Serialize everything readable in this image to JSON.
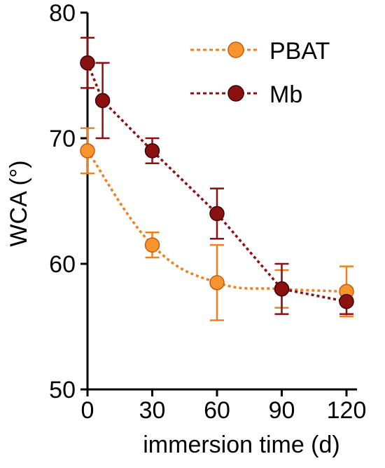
{
  "chart_data": {
    "type": "line",
    "xlabel": "immersion time (d)",
    "ylabel": "WCA (°)",
    "xlim": [
      0,
      120
    ],
    "ylim": [
      50,
      80
    ],
    "x_ticks": [
      "0",
      "30",
      "60",
      "90",
      "120"
    ],
    "y_ticks": [
      "50",
      "60",
      "70",
      "80"
    ],
    "grid": false,
    "legend_position": "top-right",
    "series": [
      {
        "name": "PBAT",
        "color": "#f07f1e",
        "line_style": "dotted",
        "x": [
          0,
          30,
          60,
          90,
          120
        ],
        "y": [
          69,
          61.5,
          58.5,
          58,
          57.8
        ],
        "error": [
          1.8,
          1,
          3,
          1.5,
          2
        ]
      },
      {
        "name": "Mb",
        "color": "#8b1010",
        "line_style": "dotted",
        "x": [
          0,
          7,
          30,
          60,
          90,
          120
        ],
        "y": [
          76,
          73,
          69,
          64,
          58,
          57
        ],
        "error": [
          2,
          3,
          1,
          2,
          2,
          1
        ]
      }
    ]
  }
}
